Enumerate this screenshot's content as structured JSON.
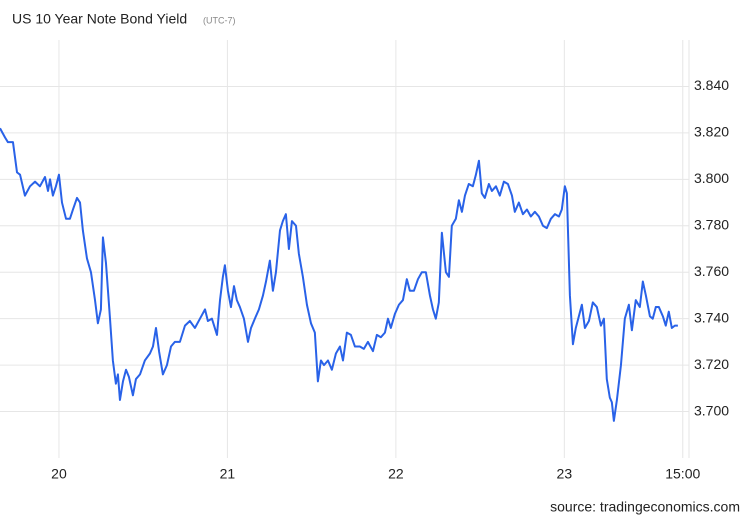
{
  "chart_data": {
    "type": "line",
    "title": "US 10 Year Note Bond Yield",
    "subtitle": "(UTC-7)",
    "source": "source: tradingeconomics.com",
    "x": [
      19.65,
      19.68,
      19.697,
      19.727,
      19.751,
      19.769,
      19.798,
      19.828,
      19.858,
      19.887,
      19.917,
      19.935,
      19.947,
      19.964,
      19.982,
      20.0,
      20.018,
      20.042,
      20.065,
      20.083,
      20.107,
      20.125,
      20.142,
      20.166,
      20.19,
      20.214,
      20.231,
      20.249,
      20.261,
      20.279,
      20.303,
      20.32,
      20.338,
      20.35,
      20.362,
      20.38,
      20.398,
      20.415,
      20.439,
      20.457,
      20.481,
      20.51,
      20.54,
      20.558,
      20.576,
      20.594,
      20.617,
      20.641,
      20.665,
      20.688,
      20.718,
      20.748,
      20.777,
      20.807,
      20.837,
      20.867,
      20.884,
      20.908,
      20.938,
      20.956,
      20.973,
      20.985,
      21.003,
      21.021,
      21.039,
      21.056,
      21.074,
      21.098,
      21.122,
      21.14,
      21.163,
      21.187,
      21.211,
      21.229,
      21.252,
      21.27,
      21.288,
      21.312,
      21.329,
      21.347,
      21.365,
      21.383,
      21.407,
      21.424,
      21.448,
      21.472,
      21.496,
      21.519,
      21.537,
      21.555,
      21.573,
      21.597,
      21.62,
      21.644,
      21.668,
      21.686,
      21.709,
      21.733,
      21.757,
      21.786,
      21.81,
      21.834,
      21.864,
      21.887,
      21.911,
      21.935,
      21.953,
      21.97,
      21.994,
      22.018,
      22.042,
      22.065,
      22.083,
      22.107,
      22.131,
      22.154,
      22.178,
      22.202,
      22.22,
      22.237,
      22.255,
      22.273,
      22.297,
      22.315,
      22.332,
      22.356,
      22.374,
      22.392,
      22.41,
      22.433,
      22.457,
      22.475,
      22.493,
      22.51,
      22.528,
      22.552,
      22.57,
      22.594,
      22.617,
      22.641,
      22.665,
      22.689,
      22.706,
      22.73,
      22.754,
      22.778,
      22.801,
      22.825,
      22.849,
      22.873,
      22.896,
      22.92,
      22.944,
      22.968,
      22.985,
      23.003,
      23.015,
      23.033,
      23.051,
      23.068,
      23.086,
      23.104,
      23.122,
      23.146,
      23.169,
      23.193,
      23.217,
      23.235,
      23.252,
      23.27,
      23.282,
      23.294,
      23.312,
      23.336,
      23.359,
      23.383,
      23.401,
      23.424,
      23.448,
      23.466,
      23.484,
      23.508,
      23.525,
      23.543,
      23.561,
      23.585,
      23.602,
      23.62,
      23.638,
      23.656,
      23.674
    ],
    "series": [
      {
        "name": "US 10 Year Note Bond Yield",
        "color": "#2962e8",
        "values": [
          3.822,
          3.818,
          3.816,
          3.816,
          3.803,
          3.802,
          3.793,
          3.797,
          3.799,
          3.797,
          3.801,
          3.795,
          3.8,
          3.793,
          3.797,
          3.802,
          3.79,
          3.783,
          3.783,
          3.787,
          3.792,
          3.79,
          3.778,
          3.766,
          3.76,
          3.748,
          3.738,
          3.744,
          3.775,
          3.764,
          3.74,
          3.722,
          3.712,
          3.716,
          3.705,
          3.713,
          3.718,
          3.715,
          3.707,
          3.714,
          3.716,
          3.722,
          3.725,
          3.728,
          3.736,
          3.726,
          3.716,
          3.72,
          3.728,
          3.73,
          3.73,
          3.737,
          3.739,
          3.736,
          3.74,
          3.744,
          3.739,
          3.74,
          3.733,
          3.748,
          3.758,
          3.763,
          3.752,
          3.745,
          3.754,
          3.748,
          3.745,
          3.74,
          3.73,
          3.736,
          3.74,
          3.744,
          3.75,
          3.756,
          3.765,
          3.752,
          3.76,
          3.778,
          3.782,
          3.785,
          3.77,
          3.782,
          3.78,
          3.768,
          3.758,
          3.746,
          3.738,
          3.734,
          3.713,
          3.722,
          3.72,
          3.722,
          3.718,
          3.725,
          3.728,
          3.722,
          3.734,
          3.733,
          3.728,
          3.728,
          3.727,
          3.73,
          3.726,
          3.733,
          3.732,
          3.734,
          3.74,
          3.736,
          3.742,
          3.746,
          3.748,
          3.757,
          3.752,
          3.752,
          3.757,
          3.76,
          3.76,
          3.75,
          3.744,
          3.74,
          3.747,
          3.777,
          3.76,
          3.758,
          3.78,
          3.783,
          3.791,
          3.786,
          3.793,
          3.798,
          3.797,
          3.802,
          3.808,
          3.794,
          3.792,
          3.798,
          3.795,
          3.797,
          3.793,
          3.799,
          3.798,
          3.793,
          3.786,
          3.79,
          3.785,
          3.787,
          3.784,
          3.786,
          3.784,
          3.78,
          3.779,
          3.783,
          3.785,
          3.784,
          3.787,
          3.797,
          3.794,
          3.75,
          3.729,
          3.736,
          3.741,
          3.746,
          3.736,
          3.739,
          3.747,
          3.745,
          3.737,
          3.74,
          3.714,
          3.706,
          3.704,
          3.696,
          3.705,
          3.72,
          3.74,
          3.746,
          3.735,
          3.748,
          3.745,
          3.756,
          3.75,
          3.741,
          3.74,
          3.745,
          3.745,
          3.741,
          3.737,
          3.743,
          3.736,
          3.737,
          3.737
        ]
      }
    ],
    "xlim": [
      19.65,
      23.74
    ],
    "xticks": [
      20,
      21,
      22,
      23,
      {
        "value": 23.703,
        "label": "15:00"
      }
    ],
    "ylim": [
      3.68,
      3.86
    ],
    "yticks": [
      {
        "value": 3.7,
        "label": "3.700"
      },
      {
        "value": 3.72,
        "label": "3.720"
      },
      {
        "value": 3.74,
        "label": "3.740"
      },
      {
        "value": 3.76,
        "label": "3.760"
      },
      {
        "value": 3.78,
        "label": "3.780"
      },
      {
        "value": 3.8,
        "label": "3.800"
      },
      {
        "value": 3.82,
        "label": "3.820"
      },
      {
        "value": 3.84,
        "label": "3.840"
      }
    ],
    "grid": true
  }
}
